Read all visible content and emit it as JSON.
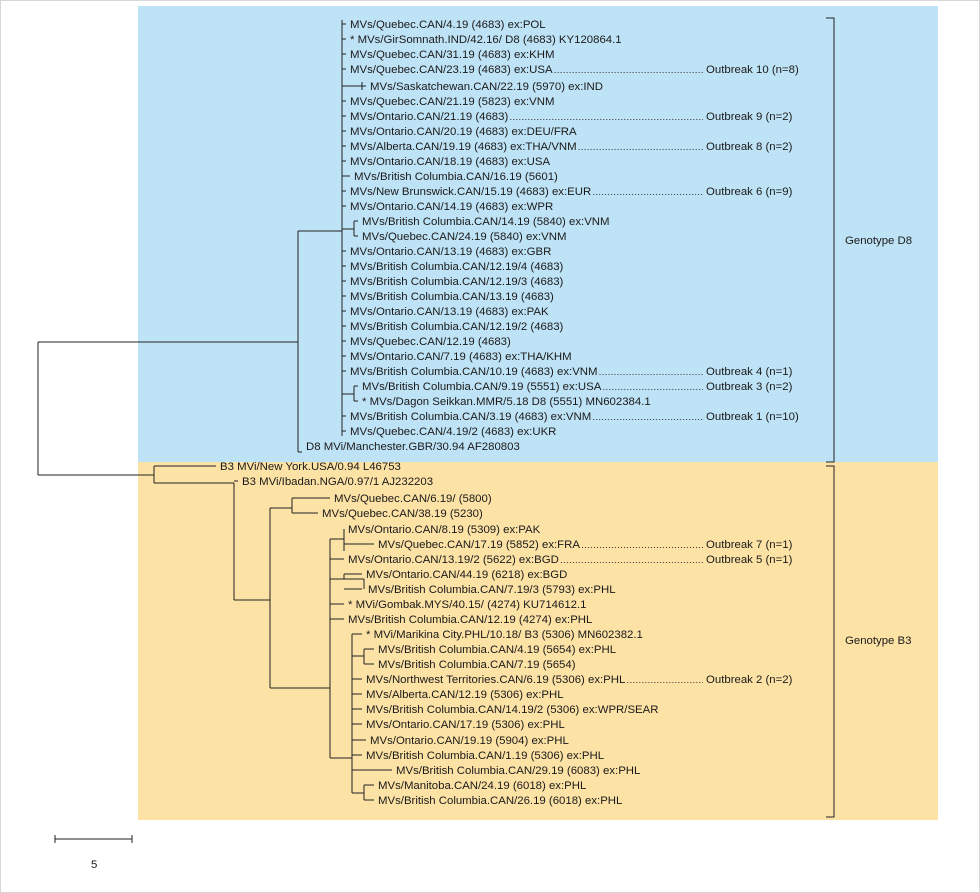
{
  "colors": {
    "d8_region": "#bfe3f6",
    "b3_region": "#fde2a6",
    "line": "#222222",
    "text": "#1a1a1a",
    "border": "#d6d6d6"
  },
  "scale_bar": {
    "label": "5"
  },
  "genotypes": [
    {
      "id": "D8",
      "label": "Genotype D8"
    },
    {
      "id": "B3",
      "label": "Genotype B3"
    }
  ],
  "taxa": [
    {
      "label": "MVs/Quebec.CAN/4.19 (4683) ex:POL"
    },
    {
      "label": "* MVs/GirSomnath.IND/42.16/ D8 (4683) KY120864.1"
    },
    {
      "label": "MVs/Quebec.CAN/31.19 (4683) ex:KHM"
    },
    {
      "label": "MVs/Quebec.CAN/23.19 (4683) ex:USA",
      "outbreak": "Outbreak 10 (n=8)"
    },
    {
      "label": "MVs/Saskatchewan.CAN/22.19 (5970) ex:IND"
    },
    {
      "label": "MVs/Quebec.CAN/21.19 (5823) ex:VNM"
    },
    {
      "label": "MVs/Ontario.CAN/21.19 (4683)",
      "outbreak": "Outbreak 9 (n=2)"
    },
    {
      "label": "MVs/Ontario.CAN/20.19 (4683) ex:DEU/FRA"
    },
    {
      "label": "MVs/Alberta.CAN/19.19 (4683) ex:THA/VNM",
      "outbreak": "Outbreak 8 (n=2)"
    },
    {
      "label": "MVs/Ontario.CAN/18.19 (4683) ex:USA"
    },
    {
      "label": "MVs/British Columbia.CAN/16.19 (5601)"
    },
    {
      "label": "MVs/New Brunswick.CAN/15.19 (4683) ex:EUR",
      "outbreak": "Outbreak 6 (n=9)"
    },
    {
      "label": "MVs/Ontario.CAN/14.19 (4683) ex:WPR"
    },
    {
      "label": "MVs/British Columbia.CAN/14.19 (5840) ex:VNM"
    },
    {
      "label": "MVs/Quebec.CAN/24.19 (5840) ex:VNM"
    },
    {
      "label": "MVs/Ontario.CAN/13.19 (4683) ex:GBR"
    },
    {
      "label": "MVs/British Columbia.CAN/12.19/4 (4683)"
    },
    {
      "label": "MVs/British Columbia.CAN/12.19/3 (4683)"
    },
    {
      "label": "MVs/British Columbia.CAN/13.19 (4683)"
    },
    {
      "label": "MVs/Ontario.CAN/13.19 (4683) ex:PAK"
    },
    {
      "label": "MVs/British Columbia.CAN/12.19/2 (4683)"
    },
    {
      "label": "MVs/Quebec.CAN/12.19 (4683)"
    },
    {
      "label": "MVs/Ontario.CAN/7.19 (4683) ex:THA/KHM"
    },
    {
      "label": "MVs/British Columbia.CAN/10.19 (4683) ex:VNM",
      "outbreak": "Outbreak 4 (n=1)"
    },
    {
      "label": "MVs/British Columbia.CAN/9.19 (5551) ex:USA",
      "outbreak": "Outbreak 3 (n=2)"
    },
    {
      "label": "* MVs/Dagon Seikkan.MMR/5.18 D8 (5551) MN602384.1"
    },
    {
      "label": "MVs/British Columbia.CAN/3.19 (4683) ex:VNM",
      "outbreak": "Outbreak 1 (n=10)"
    },
    {
      "label": "MVs/Quebec.CAN/4.19/2 (4683) ex:UKR"
    },
    {
      "label": "D8 MVi/Manchester.GBR/30.94 AF280803"
    },
    {
      "label": "B3 MVi/New York.USA/0.94 L46753"
    },
    {
      "label": "B3 MVi/Ibadan.NGA/0.97/1 AJ232203"
    },
    {
      "label": "MVs/Quebec.CAN/6.19/ (5800)"
    },
    {
      "label": "MVs/Quebec.CAN/38.19 (5230)"
    },
    {
      "label": "MVs/Ontario.CAN/8.19 (5309) ex:PAK"
    },
    {
      "label": "MVs/Quebec.CAN/17.19 (5852) ex:FRA",
      "outbreak": "Outbreak 7 (n=1)"
    },
    {
      "label": "MVs/Ontario.CAN/13.19/2 (5622) ex:BGD",
      "outbreak": "Outbreak 5 (n=1)"
    },
    {
      "label": "MVs/Ontario.CAN/44.19 (6218) ex:BGD"
    },
    {
      "label": "MVs/British Columbia.CAN/7.19/3 (5793) ex:PHL"
    },
    {
      "label": "* MVi/Gombak.MYS/40.15/ (4274) KU714612.1"
    },
    {
      "label": "MVs/British Columbia.CAN/12.19 (4274) ex:PHL"
    },
    {
      "label": "* MVi/Marikina City.PHL/10.18/ B3 (5306) MN602382.1"
    },
    {
      "label": "MVs/British Columbia.CAN/4.19 (5654) ex:PHL"
    },
    {
      "label": "MVs/British Columbia.CAN/7.19 (5654)"
    },
    {
      "label": "MVs/Northwest Territories.CAN/6.19 (5306) ex:PHL",
      "outbreak": "Outbreak 2 (n=2)"
    },
    {
      "label": "MVs/Alberta.CAN/12.19 (5306) ex:PHL"
    },
    {
      "label": "MVs/British Columbia.CAN/14.19/2 (5306) ex:WPR/SEAR"
    },
    {
      "label": "MVs/Ontario.CAN/17.19 (5306) ex:PHL"
    },
    {
      "label": "MVs/Ontario.CAN/19.19 (5904) ex:PHL"
    },
    {
      "label": "MVs/British Columbia.CAN/1.19 (5306) ex:PHL"
    },
    {
      "label": "MVs/British Columbia.CAN/29.19 (6083) ex:PHL"
    },
    {
      "label": "MVs/Manitoba.CAN/24.19 (6018) ex:PHL"
    },
    {
      "label": "MVs/British Columbia.CAN/26.19 (6018) ex:PHL"
    }
  ]
}
